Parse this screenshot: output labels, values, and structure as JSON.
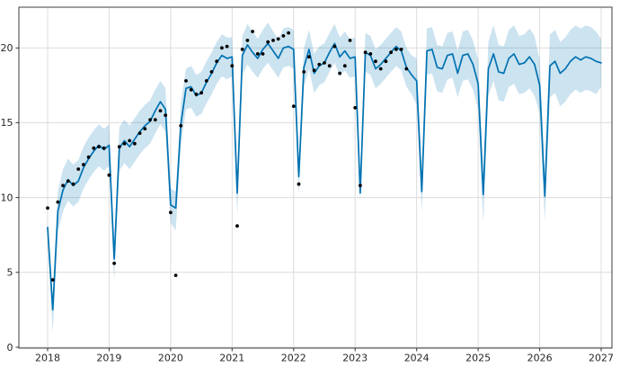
{
  "chart_data": {
    "type": "line",
    "title": "",
    "description": "Monthly time-series forecast (Prophet-style): observed points as black dots (Jan 2018 - Nov 2023), blue forecast line with shaded uncertainty interval extending to 2027, sharp seasonal dips near the start of each year.",
    "x_axis": {
      "tick_labels": [
        "2018",
        "2019",
        "2020",
        "2021",
        "2022",
        "2023",
        "2024",
        "2025",
        "2026",
        "2027"
      ],
      "tick_values": [
        2018,
        2019,
        2020,
        2021,
        2022,
        2023,
        2024,
        2025,
        2026,
        2027
      ],
      "range": [
        2017.533,
        2027.175
      ]
    },
    "y_axis": {
      "tick_labels": [
        "0",
        "5",
        "10",
        "15",
        "20"
      ],
      "tick_values": [
        0,
        5,
        10,
        15,
        20
      ],
      "range": [
        -0.06,
        22.72
      ]
    },
    "grid": true,
    "legend_position": "none",
    "series_x": {
      "start_year": 2018,
      "step_years": 0.0833333
    },
    "forecast": {
      "label": "forecast",
      "color": "#0072B2",
      "line_width": 1.7,
      "values": [
        8.0,
        2.5,
        9.1,
        10.5,
        11.2,
        10.8,
        11.1,
        12.0,
        12.6,
        13.1,
        13.5,
        13.2,
        13.5,
        5.9,
        13.3,
        13.8,
        13.4,
        13.9,
        14.4,
        14.8,
        15.1,
        15.8,
        16.4,
        15.9,
        9.5,
        9.3,
        14.9,
        17.3,
        17.4,
        16.8,
        17.0,
        17.7,
        18.3,
        19.0,
        19.5,
        19.3,
        19.4,
        10.3,
        19.5,
        20.2,
        19.7,
        19.3,
        19.9,
        20.3,
        19.8,
        19.3,
        20.0,
        20.1,
        19.9,
        11.4,
        18.7,
        19.9,
        18.3,
        18.8,
        19.0,
        19.7,
        20.3,
        19.4,
        19.8,
        19.3,
        19.4,
        10.3,
        19.7,
        19.5,
        18.6,
        18.9,
        19.3,
        19.7,
        20.1,
        19.8,
        18.7,
        18.2,
        17.8,
        10.4,
        19.8,
        19.9,
        18.7,
        18.6,
        19.5,
        19.6,
        18.3,
        19.5,
        19.6,
        18.9,
        17.6,
        10.2,
        18.6,
        19.6,
        18.4,
        18.3,
        19.3,
        19.6,
        18.9,
        19.0,
        19.4,
        18.9,
        17.5,
        10.1,
        18.8,
        19.1,
        18.3,
        18.6,
        19.1,
        19.4,
        19.2,
        19.4,
        19.3,
        19.1,
        19.0
      ]
    },
    "uncertainty": {
      "label": "uncertainty interval",
      "fill_color": "rgba(0,114,178,0.2)",
      "lower": [
        7.5,
        1.0,
        7.7,
        9.1,
        9.8,
        9.4,
        9.7,
        10.6,
        11.2,
        11.7,
        12.1,
        11.8,
        12.1,
        4.4,
        11.8,
        12.3,
        11.9,
        12.4,
        12.9,
        13.3,
        13.6,
        14.3,
        14.9,
        14.4,
        8.3,
        7.8,
        13.5,
        15.9,
        16.0,
        15.4,
        15.6,
        16.3,
        16.9,
        17.6,
        18.1,
        17.9,
        18.1,
        8.8,
        18.2,
        18.9,
        18.4,
        18.0,
        18.6,
        19.0,
        18.5,
        18.0,
        18.7,
        18.8,
        18.6,
        10.1,
        17.4,
        18.6,
        17.0,
        17.5,
        17.7,
        18.4,
        19.0,
        18.1,
        18.5,
        18.0,
        18.1,
        9.7,
        18.4,
        18.2,
        17.3,
        17.6,
        18.0,
        18.4,
        18.8,
        18.5,
        17.4,
        16.9,
        16.2,
        9.0,
        18.2,
        18.3,
        17.1,
        17.0,
        17.9,
        18.0,
        16.7,
        17.8,
        17.9,
        17.2,
        15.9,
        8.3,
        16.8,
        17.8,
        16.5,
        16.4,
        17.4,
        17.6,
        16.9,
        17.0,
        17.3,
        16.8,
        15.6,
        8.4,
        16.7,
        17.0,
        16.1,
        16.4,
        16.9,
        17.2,
        17.0,
        17.2,
        17.1,
        16.9,
        17.4
      ],
      "upper": [
        8.5,
        3.2,
        10.4,
        11.9,
        12.6,
        12.2,
        12.5,
        13.4,
        14.0,
        14.5,
        14.9,
        14.6,
        14.9,
        6.8,
        14.7,
        15.2,
        14.8,
        15.3,
        15.8,
        16.2,
        16.5,
        17.2,
        17.8,
        17.3,
        10.6,
        10.4,
        16.3,
        18.6,
        18.8,
        18.2,
        18.4,
        19.1,
        19.7,
        20.4,
        20.9,
        20.7,
        20.7,
        11.3,
        20.8,
        21.6,
        21.1,
        20.6,
        21.2,
        21.7,
        21.1,
        20.6,
        21.3,
        21.4,
        21.2,
        12.3,
        20.0,
        21.2,
        19.6,
        20.1,
        20.3,
        21.0,
        21.6,
        20.7,
        21.1,
        20.6,
        20.7,
        11.0,
        21.0,
        20.8,
        19.9,
        20.2,
        20.6,
        21.0,
        21.4,
        21.1,
        20.0,
        19.5,
        19.3,
        11.7,
        21.3,
        21.4,
        20.2,
        20.1,
        21.0,
        21.1,
        19.8,
        21.1,
        21.2,
        20.5,
        19.2,
        11.6,
        20.4,
        21.5,
        20.2,
        20.1,
        21.2,
        21.5,
        20.8,
        20.9,
        21.3,
        20.8,
        19.2,
        11.7,
        20.9,
        21.2,
        20.4,
        20.7,
        21.2,
        21.5,
        21.3,
        21.5,
        21.4,
        21.1,
        20.6
      ]
    },
    "observed": {
      "label": "observed",
      "color": "#000000",
      "marker": "dot",
      "marker_radius": 1.9,
      "values": [
        9.3,
        4.5,
        9.7,
        10.8,
        11.1,
        10.9,
        11.9,
        12.2,
        12.7,
        13.3,
        13.4,
        13.3,
        11.5,
        5.6,
        13.4,
        13.6,
        13.8,
        13.6,
        14.3,
        14.6,
        15.2,
        15.2,
        15.8,
        15.5,
        9.0,
        4.8,
        14.8,
        17.8,
        17.2,
        16.9,
        17.0,
        17.8,
        18.4,
        19.1,
        20.0,
        20.1,
        18.8,
        8.1,
        19.9,
        20.5,
        21.1,
        19.6,
        19.6,
        20.4,
        20.5,
        20.6,
        20.8,
        21.0,
        16.1,
        10.9,
        18.4,
        19.4,
        18.5,
        18.9,
        19.0,
        18.8,
        20.1,
        18.3,
        18.8,
        20.5,
        16.0,
        10.8,
        19.7,
        19.6,
        19.1,
        18.6,
        19.1,
        19.7,
        19.9,
        19.9,
        18.6
      ]
    },
    "colors": {
      "background": "#ffffff",
      "grid": "#dcdcdc",
      "frame": "#3d3d3d",
      "tick_text": "#262626",
      "tick_mark": "#333333"
    }
  }
}
